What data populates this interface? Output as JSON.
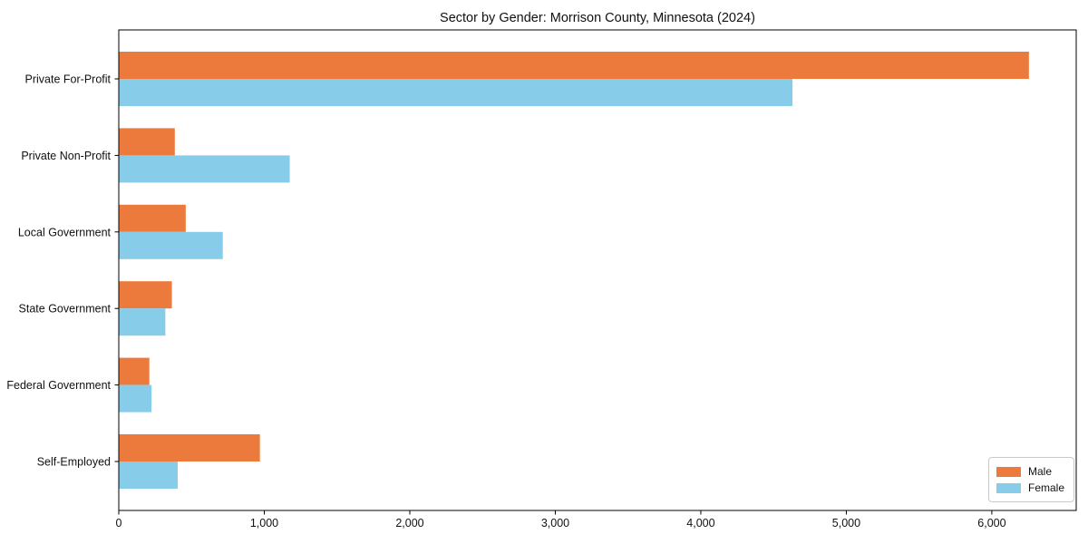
{
  "chart_data": {
    "type": "bar",
    "orientation": "horizontal",
    "title": "Sector by Gender: Morrison County, Minnesota (2024)",
    "categories": [
      "Private For-Profit",
      "Private Non-Profit",
      "Local Government",
      "State Government",
      "Federal Government",
      "Self-Employed"
    ],
    "series": [
      {
        "name": "Male",
        "color": "#ec7a3d",
        "values": [
          6255,
          385,
          460,
          365,
          210,
          970
        ]
      },
      {
        "name": "Female",
        "color": "#87cde9",
        "values": [
          4630,
          1175,
          715,
          320,
          225,
          405
        ]
      }
    ],
    "xlabel": "",
    "ylabel": "",
    "xlim": [
      0,
      6580
    ],
    "xticks": [
      0,
      1000,
      2000,
      3000,
      4000,
      5000,
      6000
    ],
    "xtick_labels": [
      "0",
      "1,000",
      "2,000",
      "3,000",
      "4,000",
      "5,000",
      "6,000"
    ],
    "grid": false,
    "legend_position": "lower right",
    "axis_color": "#000000",
    "background": "#ffffff"
  }
}
